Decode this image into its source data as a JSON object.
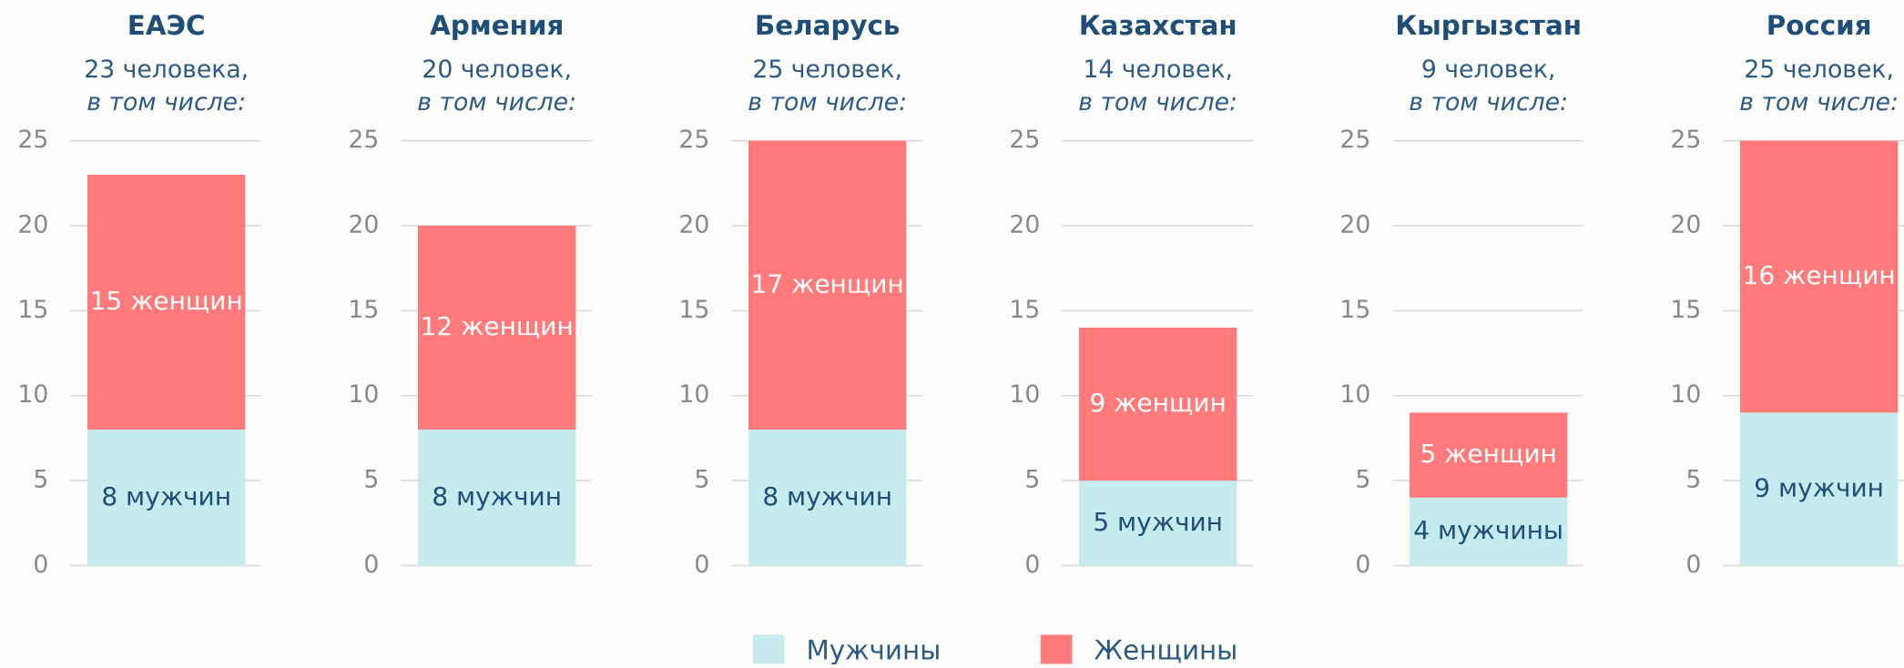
{
  "chart_data": [
    {
      "type": "bar",
      "stacked": true,
      "title": "ЕАЭС",
      "subtitle": [
        "23 человека,",
        "в том числе:"
      ],
      "ylim": [
        0,
        25
      ],
      "yticks": [
        0,
        5,
        10,
        15,
        20,
        25
      ],
      "grid": true,
      "series": [
        {
          "name": "Мужчины",
          "color": "#c5ebee",
          "values": [
            8
          ],
          "value_labels": [
            "8 мужчин"
          ]
        },
        {
          "name": "Женщины",
          "color": "#ff7a7a",
          "values": [
            15
          ],
          "value_labels": [
            "15 женщин"
          ]
        }
      ]
    },
    {
      "type": "bar",
      "stacked": true,
      "title": "Армения",
      "subtitle": [
        "20 человек,",
        "в том числе:"
      ],
      "ylim": [
        0,
        25
      ],
      "yticks": [
        0,
        5,
        10,
        15,
        20,
        25
      ],
      "grid": true,
      "series": [
        {
          "name": "Мужчины",
          "color": "#c5ebee",
          "values": [
            8
          ],
          "value_labels": [
            "8 мужчин"
          ]
        },
        {
          "name": "Женщины",
          "color": "#ff7a7a",
          "values": [
            12
          ],
          "value_labels": [
            "12 женщин"
          ]
        }
      ]
    },
    {
      "type": "bar",
      "stacked": true,
      "title": "Беларусь",
      "subtitle": [
        "25 человек,",
        "в том числе:"
      ],
      "ylim": [
        0,
        25
      ],
      "yticks": [
        0,
        5,
        10,
        15,
        20,
        25
      ],
      "grid": true,
      "series": [
        {
          "name": "Мужчины",
          "color": "#c5ebee",
          "values": [
            8
          ],
          "value_labels": [
            "8 мужчин"
          ]
        },
        {
          "name": "Женщины",
          "color": "#ff7a7a",
          "values": [
            17
          ],
          "value_labels": [
            "17 женщин"
          ]
        }
      ]
    },
    {
      "type": "bar",
      "stacked": true,
      "title": "Казахстан",
      "subtitle": [
        "14 человек,",
        "в том числе:"
      ],
      "ylim": [
        0,
        25
      ],
      "yticks": [
        0,
        5,
        10,
        15,
        20,
        25
      ],
      "grid": true,
      "series": [
        {
          "name": "Мужчины",
          "color": "#c5ebee",
          "values": [
            5
          ],
          "value_labels": [
            "5 мужчин"
          ]
        },
        {
          "name": "Женщины",
          "color": "#ff7a7a",
          "values": [
            9
          ],
          "value_labels": [
            "9 женщин"
          ]
        }
      ]
    },
    {
      "type": "bar",
      "stacked": true,
      "title": "Кыргызстан",
      "subtitle": [
        "9 человек,",
        "в том числе:"
      ],
      "ylim": [
        0,
        25
      ],
      "yticks": [
        0,
        5,
        10,
        15,
        20,
        25
      ],
      "grid": true,
      "series": [
        {
          "name": "Мужчины",
          "color": "#c5ebee",
          "values": [
            4
          ],
          "value_labels": [
            "4 мужчины"
          ]
        },
        {
          "name": "Женщины",
          "color": "#ff7a7a",
          "values": [
            5
          ],
          "value_labels": [
            "5 женщин"
          ]
        }
      ]
    },
    {
      "type": "bar",
      "stacked": true,
      "title": "Россия",
      "subtitle": [
        "25 человек,",
        "в том числе:"
      ],
      "ylim": [
        0,
        25
      ],
      "yticks": [
        0,
        5,
        10,
        15,
        20,
        25
      ],
      "grid": true,
      "series": [
        {
          "name": "Мужчины",
          "color": "#c5ebee",
          "values": [
            9
          ],
          "value_labels": [
            "9 мужчин"
          ]
        },
        {
          "name": "Женщины",
          "color": "#ff7a7a",
          "values": [
            16
          ],
          "value_labels": [
            "16 женщин"
          ]
        }
      ]
    }
  ]
}
